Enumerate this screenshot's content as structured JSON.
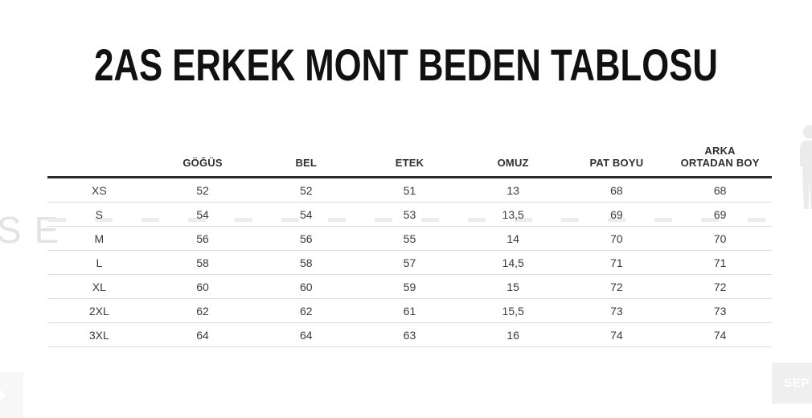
{
  "title": "2AS ERKEK MONT BEDEN TABLOSU",
  "table": {
    "size_column_header": "",
    "columns": [
      "GÖĞÜS",
      "BEL",
      "ETEK",
      "OMUZ",
      "PAT BOYU",
      "ARKA\nORTADAN BOY"
    ],
    "rows": [
      {
        "size": "XS",
        "values": [
          "52",
          "52",
          "51",
          "13",
          "68",
          "68"
        ]
      },
      {
        "size": "S",
        "values": [
          "54",
          "54",
          "53",
          "13,5",
          "69",
          "69"
        ]
      },
      {
        "size": "M",
        "values": [
          "56",
          "56",
          "55",
          "14",
          "70",
          "70"
        ]
      },
      {
        "size": "L",
        "values": [
          "58",
          "58",
          "57",
          "14,5",
          "71",
          "71"
        ]
      },
      {
        "size": "XL",
        "values": [
          "60",
          "60",
          "59",
          "15",
          "72",
          "72"
        ]
      },
      {
        "size": "2XL",
        "values": [
          "62",
          "62",
          "61",
          "15,5",
          "73",
          "73"
        ]
      },
      {
        "size": "3XL",
        "values": [
          "64",
          "64",
          "63",
          "16",
          "74",
          "74"
        ]
      }
    ]
  },
  "watermark": {
    "text": "SE"
  },
  "corner_badge": {
    "text": "SEP"
  },
  "colors": {
    "title_text": "#111111",
    "header_text": "#2f2f2f",
    "cell_text": "#3a3a3a",
    "header_rule": "#2b2b2b",
    "row_rule": "#dcdcdc",
    "watermark_text": "#e3e3e3",
    "badge_bg": "#efefef",
    "badge_text": "#ffffff",
    "silhouette": "#ebebeb"
  }
}
